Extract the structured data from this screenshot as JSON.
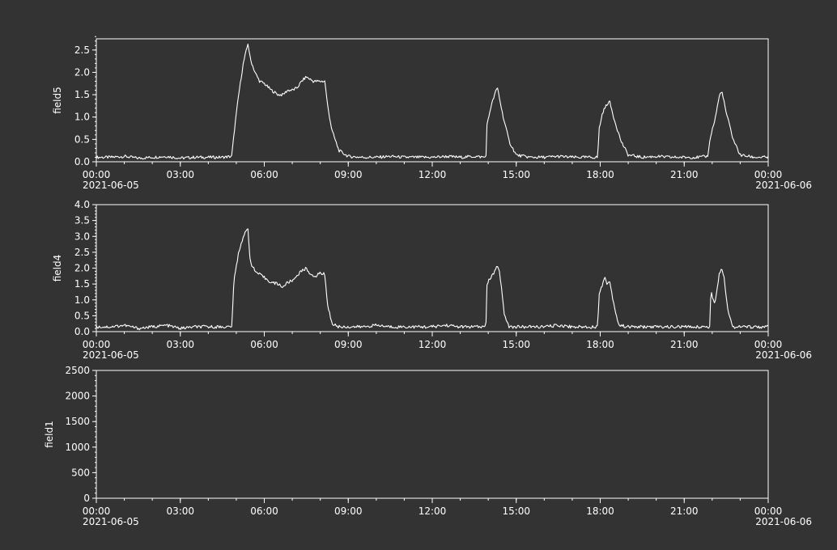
{
  "theme": {
    "background": "#333333",
    "foreground": "#ffffff"
  },
  "chart_data": [
    {
      "type": "line",
      "ylabel": "field5",
      "ylim": [
        0,
        2.75
      ],
      "yticks": [
        0,
        0.5,
        1,
        1.5,
        2,
        2.5
      ],
      "ytick_labels": [
        "0.0",
        "0.5",
        "1.0",
        "1.5",
        "2.0",
        "2.5"
      ],
      "yminor_step": 0.1,
      "xlim": [
        "2021-06-05 00:00",
        "2021-06-06 00:00"
      ],
      "xticks": [
        "00:00",
        "03:00",
        "06:00",
        "09:00",
        "12:00",
        "15:00",
        "18:00",
        "21:00",
        "00:00"
      ],
      "xdate_start": "2021-06-05",
      "xdate_end": "2021-06-06",
      "grid": false,
      "series": [
        {
          "x": [
            "00:00",
            "00:30",
            "01:00",
            "01:30",
            "02:00",
            "02:30",
            "03:00",
            "03:30",
            "04:00",
            "04:30",
            "04:50",
            "04:57",
            "05:05",
            "05:15",
            "05:25",
            "05:30",
            "05:40",
            "05:50",
            "06:00",
            "06:15",
            "06:30",
            "06:40",
            "06:50",
            "07:00",
            "07:10",
            "07:20",
            "07:30",
            "07:45",
            "08:00",
            "08:10",
            "08:15",
            "08:25",
            "08:40",
            "09:00",
            "09:30",
            "10:00",
            "10:30",
            "11:00",
            "11:30",
            "12:00",
            "12:30",
            "13:00",
            "13:30",
            "13:55",
            "13:57",
            "14:05",
            "14:15",
            "14:20",
            "14:30",
            "14:45",
            "15:00",
            "15:30",
            "16:00",
            "16:30",
            "17:00",
            "17:30",
            "17:55",
            "17:57",
            "18:05",
            "18:15",
            "18:20",
            "18:30",
            "18:45",
            "19:00",
            "19:30",
            "20:00",
            "20:30",
            "21:00",
            "21:30",
            "21:50",
            "21:57",
            "22:05",
            "22:15",
            "22:20",
            "22:30",
            "22:45",
            "23:00",
            "23:30",
            "24:00"
          ],
          "values": [
            0.1,
            0.1,
            0.12,
            0.08,
            0.1,
            0.12,
            0.08,
            0.1,
            0.1,
            0.1,
            0.12,
            0.8,
            1.5,
            2.2,
            2.65,
            2.3,
            2.0,
            1.8,
            1.75,
            1.6,
            1.5,
            1.5,
            1.6,
            1.6,
            1.65,
            1.8,
            1.9,
            1.8,
            1.8,
            1.8,
            1.3,
            0.7,
            0.25,
            0.12,
            0.1,
            0.1,
            0.12,
            0.1,
            0.1,
            0.1,
            0.12,
            0.1,
            0.12,
            0.1,
            0.8,
            1.2,
            1.55,
            1.65,
            1.1,
            0.45,
            0.15,
            0.1,
            0.1,
            0.12,
            0.1,
            0.1,
            0.1,
            0.7,
            1.1,
            1.3,
            1.35,
            0.95,
            0.45,
            0.15,
            0.1,
            0.12,
            0.1,
            0.1,
            0.1,
            0.12,
            0.6,
            0.9,
            1.45,
            1.6,
            1.1,
            0.5,
            0.15,
            0.1,
            0.1
          ]
        }
      ]
    },
    {
      "type": "line",
      "ylabel": "field4",
      "ylim": [
        0,
        4
      ],
      "yticks": [
        0,
        0.5,
        1,
        1.5,
        2,
        2.5,
        3,
        3.5,
        4
      ],
      "ytick_labels": [
        "0.0",
        "0.5",
        "1.0",
        "1.5",
        "2.0",
        "2.5",
        "3.0",
        "3.5",
        "4.0"
      ],
      "yminor_step": 0.1,
      "xlim": [
        "2021-06-05 00:00",
        "2021-06-06 00:00"
      ],
      "xticks": [
        "00:00",
        "03:00",
        "06:00",
        "09:00",
        "12:00",
        "15:00",
        "18:00",
        "21:00",
        "00:00"
      ],
      "xdate_start": "2021-06-05",
      "xdate_end": "2021-06-06",
      "grid": false,
      "series": [
        {
          "x": [
            "00:00",
            "00:30",
            "01:00",
            "01:30",
            "02:00",
            "02:30",
            "03:00",
            "03:30",
            "04:00",
            "04:30",
            "04:50",
            "04:55",
            "05:05",
            "05:15",
            "05:25",
            "05:30",
            "05:40",
            "05:50",
            "06:00",
            "06:15",
            "06:30",
            "06:40",
            "06:50",
            "07:00",
            "07:15",
            "07:30",
            "07:45",
            "08:00",
            "08:10",
            "08:15",
            "08:25",
            "08:40",
            "09:00",
            "09:30",
            "10:00",
            "10:30",
            "11:00",
            "11:30",
            "12:00",
            "12:30",
            "13:00",
            "13:30",
            "13:55",
            "13:57",
            "14:05",
            "14:15",
            "14:20",
            "14:25",
            "14:35",
            "14:45",
            "15:00",
            "15:30",
            "16:00",
            "16:30",
            "17:00",
            "17:30",
            "17:55",
            "17:57",
            "18:05",
            "18:10",
            "18:15",
            "18:20",
            "18:30",
            "18:40",
            "19:00",
            "19:30",
            "20:00",
            "20:30",
            "21:00",
            "21:30",
            "21:55",
            "21:57",
            "22:05",
            "22:15",
            "22:20",
            "22:25",
            "22:35",
            "22:45",
            "23:00",
            "23:30",
            "24:00"
          ],
          "values": [
            0.15,
            0.15,
            0.2,
            0.1,
            0.15,
            0.2,
            0.1,
            0.15,
            0.15,
            0.15,
            0.15,
            1.6,
            2.5,
            3.0,
            3.25,
            2.2,
            1.9,
            1.8,
            1.7,
            1.55,
            1.5,
            1.4,
            1.55,
            1.6,
            1.85,
            2.0,
            1.7,
            1.85,
            1.8,
            0.9,
            0.25,
            0.15,
            0.15,
            0.15,
            0.2,
            0.15,
            0.15,
            0.15,
            0.15,
            0.2,
            0.15,
            0.15,
            0.15,
            1.5,
            1.7,
            1.9,
            2.1,
            1.8,
            0.5,
            0.15,
            0.15,
            0.15,
            0.15,
            0.2,
            0.15,
            0.15,
            0.15,
            1.2,
            1.5,
            1.7,
            1.5,
            1.6,
            0.8,
            0.2,
            0.15,
            0.15,
            0.15,
            0.15,
            0.15,
            0.15,
            0.15,
            1.3,
            0.85,
            1.8,
            2.05,
            1.75,
            0.55,
            0.15,
            0.15,
            0.15,
            0.15
          ]
        }
      ]
    },
    {
      "type": "line",
      "ylabel": "field1",
      "ylim": [
        0,
        2500
      ],
      "yticks": [
        0,
        500,
        1000,
        1500,
        2000,
        2500
      ],
      "ytick_labels": [
        "0",
        "500",
        "1000",
        "1500",
        "2000",
        "2500"
      ],
      "yminor_step": 100,
      "xlim": [
        "2021-06-05 00:00",
        "2021-06-06 00:00"
      ],
      "xticks": [
        "00:00",
        "03:00",
        "06:00",
        "09:00",
        "12:00",
        "15:00",
        "18:00",
        "21:00",
        "00:00"
      ],
      "xdate_start": "2021-06-05",
      "xdate_end": "2021-06-06",
      "grid": false,
      "series": []
    }
  ]
}
